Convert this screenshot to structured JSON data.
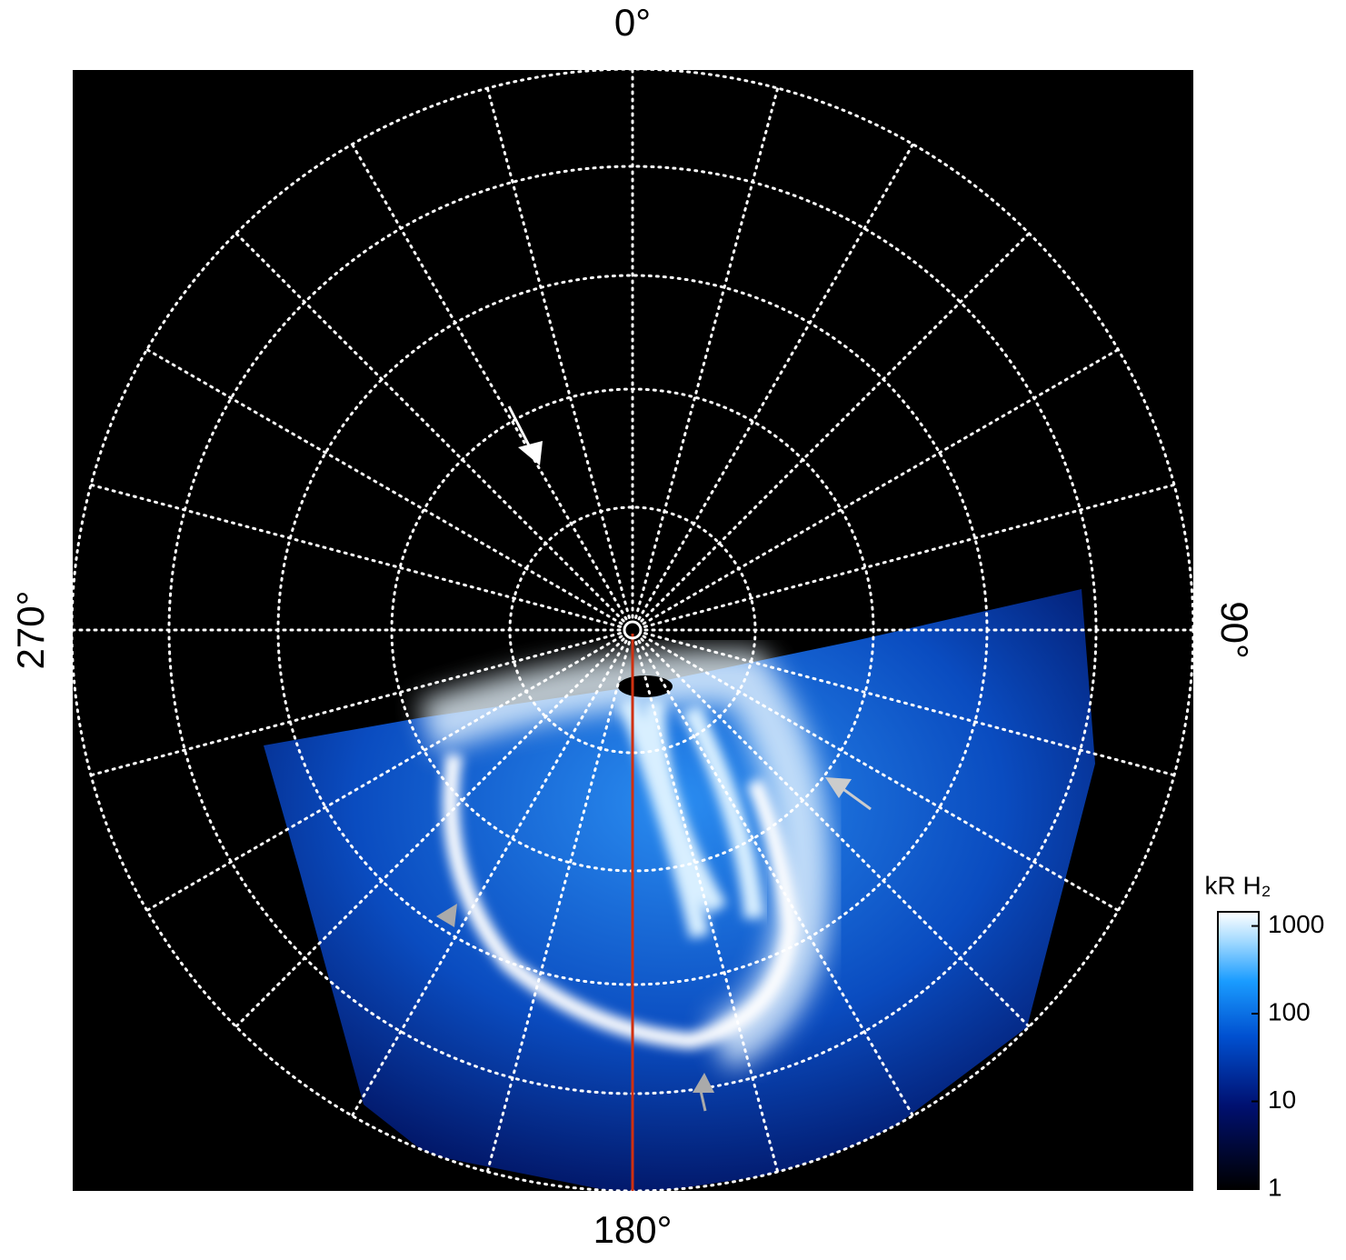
{
  "chart_data": {
    "type": "polar-image",
    "angle_ticks": [
      {
        "value": 0,
        "label": "0°"
      },
      {
        "value": 90,
        "label": "90°"
      },
      {
        "value": 180,
        "label": "180°"
      },
      {
        "value": 270,
        "label": "270°"
      }
    ],
    "colorbar": {
      "title": "kR H₂",
      "scale": "log",
      "clim": [
        1,
        1450
      ],
      "ticks": [
        1,
        10,
        100,
        1000
      ]
    },
    "grid": true
  }
}
